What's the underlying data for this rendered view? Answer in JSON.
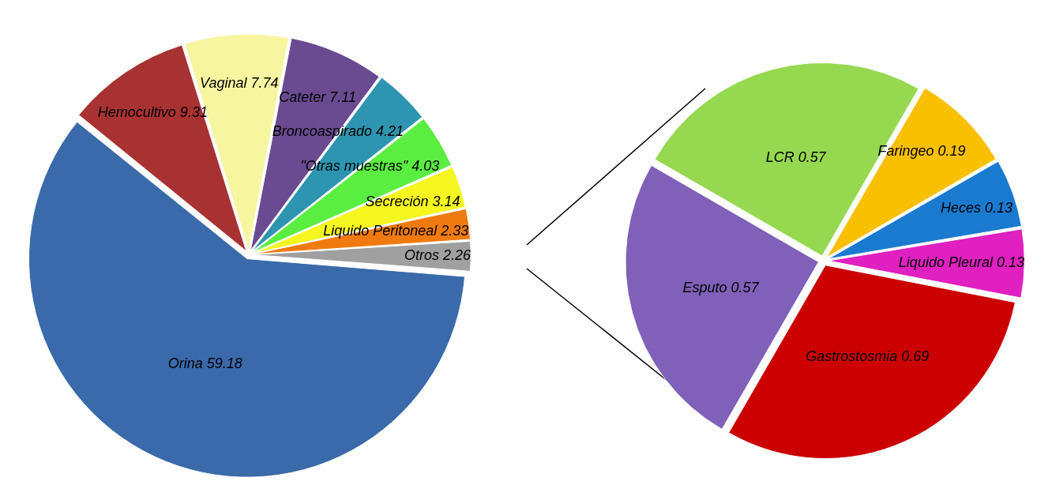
{
  "chart_data": [
    {
      "type": "pie",
      "categories": [
        "Hemocultivo",
        "Vaginal",
        "Cateter",
        "Broncoaspirado",
        "\"Otras muestras\"",
        "Secreción",
        "Liquido Peritoneal",
        "Otros",
        "Orina"
      ],
      "values": [
        9.31,
        7.74,
        7.11,
        4.21,
        4.03,
        3.14,
        2.33,
        2.26,
        59.18
      ],
      "colors": [
        "#a83232",
        "#f7f5a0",
        "#6a4a90",
        "#2e95b0",
        "#5aee40",
        "#f5f520",
        "#f07a10",
        "#a0a0a0",
        "#3a6aaa"
      ],
      "data_labels": true
    },
    {
      "type": "pie",
      "categories": [
        "LCR",
        "Faringeo",
        "Heces",
        "Liquido Pleural",
        "Gastrostosmia",
        "Esputo"
      ],
      "values": [
        0.57,
        0.19,
        0.13,
        0.13,
        0.69,
        0.57
      ],
      "colors": [
        "#96d850",
        "#f9c000",
        "#1a7ad0",
        "#e020c0",
        "#cc0000",
        "#8060b8"
      ],
      "data_labels": true
    }
  ]
}
